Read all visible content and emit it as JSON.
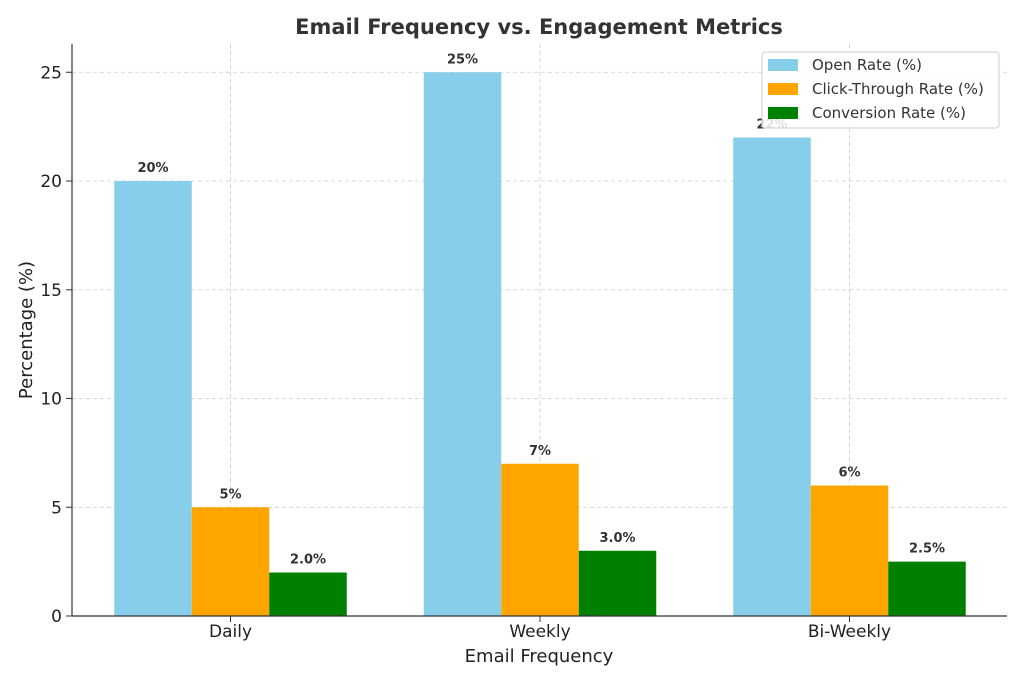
{
  "chart_data": {
    "type": "bar",
    "title": "Email Frequency vs. Engagement Metrics",
    "xlabel": "Email Frequency",
    "ylabel": "Percentage (%)",
    "categories": [
      "Daily",
      "Weekly",
      "Bi-Weekly"
    ],
    "ylim": [
      0,
      26.3
    ],
    "yticks": [
      0,
      5,
      10,
      15,
      20,
      25
    ],
    "grid": true,
    "legend_position": "top-right",
    "series": [
      {
        "name": "Open Rate (%)",
        "color": "#87CEEB",
        "values": [
          20,
          25,
          22
        ],
        "data_labels": [
          "20%",
          "25%",
          "22%"
        ]
      },
      {
        "name": "Click-Through Rate (%)",
        "color": "#FFA500",
        "values": [
          5,
          7,
          6
        ],
        "data_labels": [
          "5%",
          "7%",
          "6%"
        ]
      },
      {
        "name": "Conversion Rate (%)",
        "color": "#008000",
        "values": [
          2.0,
          3.0,
          2.5
        ],
        "data_labels": [
          "2.0%",
          "3.0%",
          "2.5%"
        ]
      }
    ]
  }
}
